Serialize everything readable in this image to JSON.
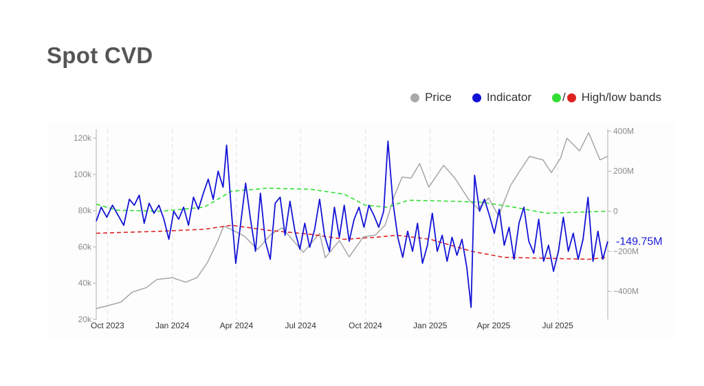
{
  "title": "Spot CVD",
  "legend": {
    "price_label": "Price",
    "indicator_label": "Indicator",
    "separator": "/",
    "bands_label": "High/low bands"
  },
  "colors": {
    "price": "#aaaaaa",
    "indicator": "#1212d6",
    "high_band": "#33dd33",
    "low_band": "#dd2222",
    "grid": "#dddddd",
    "axis": "#b0b0b0"
  },
  "chart_data": {
    "type": "line",
    "last_value_label": "-149.75M",
    "x_ticks": [
      "Oct 2023",
      "Jan 2024",
      "Apr 2024",
      "Jul 2024",
      "Oct 2024",
      "Jan 2025",
      "Apr 2025",
      "Jul 2025"
    ],
    "x_range": [
      "2023-09-15",
      "2025-09-10"
    ],
    "y_left": {
      "label": "Price",
      "range": [
        20000,
        125000
      ],
      "ticks": [
        20000,
        40000,
        60000,
        80000,
        100000,
        120000
      ],
      "tick_labels": [
        "20k",
        "40k",
        "60k",
        "80k",
        "100k",
        "120k"
      ]
    },
    "y_right": {
      "label": "Indicator",
      "range": [
        -540,
        410
      ],
      "ticks": [
        -400,
        -200,
        0,
        200,
        400
      ],
      "tick_labels": [
        "−400M",
        "−200M",
        "0",
        "200M",
        "400M"
      ]
    },
    "grid": "vertical dashed",
    "series": [
      {
        "name": "Price",
        "axis": "left",
        "points": [
          [
            "2023-09-15",
            26000
          ],
          [
            "2023-10-01",
            27500
          ],
          [
            "2023-10-20",
            29500
          ],
          [
            "2023-11-05",
            35000
          ],
          [
            "2023-11-25",
            37500
          ],
          [
            "2023-12-10",
            42000
          ],
          [
            "2024-01-01",
            43000
          ],
          [
            "2024-01-20",
            40500
          ],
          [
            "2024-02-05",
            43000
          ],
          [
            "2024-02-20",
            51500
          ],
          [
            "2024-03-05",
            63000
          ],
          [
            "2024-03-14",
            71500
          ],
          [
            "2024-03-25",
            69500
          ],
          [
            "2024-04-12",
            66000
          ],
          [
            "2024-05-01",
            58500
          ],
          [
            "2024-05-20",
            67000
          ],
          [
            "2024-06-05",
            70500
          ],
          [
            "2024-06-25",
            61500
          ],
          [
            "2024-07-05",
            57000
          ],
          [
            "2024-07-28",
            67500
          ],
          [
            "2024-08-05",
            54000
          ],
          [
            "2024-08-25",
            63500
          ],
          [
            "2024-09-08",
            54500
          ],
          [
            "2024-09-28",
            65500
          ],
          [
            "2024-10-15",
            66500
          ],
          [
            "2024-10-29",
            72000
          ],
          [
            "2024-11-11",
            88000
          ],
          [
            "2024-11-22",
            98500
          ],
          [
            "2024-12-05",
            98000
          ],
          [
            "2024-12-17",
            106000
          ],
          [
            "2024-12-30",
            93000
          ],
          [
            "2025-01-20",
            105000
          ],
          [
            "2025-02-05",
            98000
          ],
          [
            "2025-02-25",
            86000
          ],
          [
            "2025-03-10",
            81000
          ],
          [
            "2025-03-25",
            87000
          ],
          [
            "2025-04-08",
            77000
          ],
          [
            "2025-04-25",
            94000
          ],
          [
            "2025-05-10",
            103000
          ],
          [
            "2025-05-22",
            110000
          ],
          [
            "2025-06-10",
            108000
          ],
          [
            "2025-06-22",
            101000
          ],
          [
            "2025-07-05",
            109000
          ],
          [
            "2025-07-14",
            120000
          ],
          [
            "2025-08-01",
            113000
          ],
          [
            "2025-08-14",
            123000
          ],
          [
            "2025-08-30",
            108000
          ],
          [
            "2025-09-10",
            110000
          ]
        ]
      },
      {
        "name": "Indicator",
        "axis": "right",
        "points": [
          [
            "2023-09-15",
            -50
          ],
          [
            "2023-09-22",
            20
          ],
          [
            "2023-09-30",
            -30
          ],
          [
            "2023-10-08",
            30
          ],
          [
            "2023-10-16",
            -20
          ],
          [
            "2023-10-24",
            -70
          ],
          [
            "2023-11-01",
            60
          ],
          [
            "2023-11-08",
            30
          ],
          [
            "2023-11-15",
            80
          ],
          [
            "2023-11-22",
            -60
          ],
          [
            "2023-11-29",
            40
          ],
          [
            "2023-12-06",
            -10
          ],
          [
            "2023-12-13",
            30
          ],
          [
            "2023-12-20",
            -40
          ],
          [
            "2023-12-27",
            -140
          ],
          [
            "2024-01-03",
            0
          ],
          [
            "2024-01-10",
            -40
          ],
          [
            "2024-01-17",
            20
          ],
          [
            "2024-01-24",
            -70
          ],
          [
            "2024-01-31",
            70
          ],
          [
            "2024-02-07",
            10
          ],
          [
            "2024-02-14",
            90
          ],
          [
            "2024-02-21",
            160
          ],
          [
            "2024-02-28",
            60
          ],
          [
            "2024-03-06",
            200
          ],
          [
            "2024-03-13",
            120
          ],
          [
            "2024-03-18",
            330
          ],
          [
            "2024-03-25",
            -10
          ],
          [
            "2024-03-31",
            -260
          ],
          [
            "2024-04-07",
            -60
          ],
          [
            "2024-04-14",
            140
          ],
          [
            "2024-04-21",
            -40
          ],
          [
            "2024-04-28",
            -200
          ],
          [
            "2024-05-05",
            90
          ],
          [
            "2024-05-12",
            -150
          ],
          [
            "2024-05-19",
            -240
          ],
          [
            "2024-05-26",
            40
          ],
          [
            "2024-06-02",
            70
          ],
          [
            "2024-06-09",
            -120
          ],
          [
            "2024-06-16",
            50
          ],
          [
            "2024-06-23",
            -100
          ],
          [
            "2024-06-30",
            -190
          ],
          [
            "2024-07-07",
            -60
          ],
          [
            "2024-07-14",
            -180
          ],
          [
            "2024-07-21",
            -90
          ],
          [
            "2024-07-28",
            60
          ],
          [
            "2024-08-04",
            -120
          ],
          [
            "2024-08-11",
            -200
          ],
          [
            "2024-08-18",
            20
          ],
          [
            "2024-08-25",
            -130
          ],
          [
            "2024-09-01",
            30
          ],
          [
            "2024-09-08",
            -150
          ],
          [
            "2024-09-15",
            -40
          ],
          [
            "2024-09-22",
            20
          ],
          [
            "2024-09-29",
            -80
          ],
          [
            "2024-10-06",
            30
          ],
          [
            "2024-10-13",
            -20
          ],
          [
            "2024-10-20",
            -80
          ],
          [
            "2024-10-27",
            0
          ],
          [
            "2024-11-02",
            350
          ],
          [
            "2024-11-09",
            50
          ],
          [
            "2024-11-16",
            -130
          ],
          [
            "2024-11-23",
            -230
          ],
          [
            "2024-11-30",
            -100
          ],
          [
            "2024-12-07",
            -200
          ],
          [
            "2024-12-14",
            -60
          ],
          [
            "2024-12-21",
            -260
          ],
          [
            "2024-12-28",
            -170
          ],
          [
            "2025-01-04",
            -10
          ],
          [
            "2025-01-11",
            -200
          ],
          [
            "2025-01-18",
            -120
          ],
          [
            "2025-01-25",
            -250
          ],
          [
            "2025-02-01",
            -130
          ],
          [
            "2025-02-08",
            -220
          ],
          [
            "2025-02-15",
            -140
          ],
          [
            "2025-02-22",
            -280
          ],
          [
            "2025-02-28",
            -480
          ],
          [
            "2025-03-05",
            180
          ],
          [
            "2025-03-12",
            0
          ],
          [
            "2025-03-19",
            60
          ],
          [
            "2025-03-26",
            -20
          ],
          [
            "2025-04-02",
            -110
          ],
          [
            "2025-04-09",
            10
          ],
          [
            "2025-04-16",
            -170
          ],
          [
            "2025-04-23",
            -80
          ],
          [
            "2025-04-30",
            -240
          ],
          [
            "2025-05-07",
            -60
          ],
          [
            "2025-05-14",
            20
          ],
          [
            "2025-05-21",
            -150
          ],
          [
            "2025-05-28",
            -210
          ],
          [
            "2025-06-04",
            -40
          ],
          [
            "2025-06-11",
            -250
          ],
          [
            "2025-06-18",
            -170
          ],
          [
            "2025-06-25",
            -300
          ],
          [
            "2025-07-02",
            -200
          ],
          [
            "2025-07-09",
            -30
          ],
          [
            "2025-07-16",
            -200
          ],
          [
            "2025-07-23",
            -110
          ],
          [
            "2025-07-30",
            -240
          ],
          [
            "2025-08-06",
            -140
          ],
          [
            "2025-08-13",
            70
          ],
          [
            "2025-08-20",
            -250
          ],
          [
            "2025-08-27",
            -100
          ],
          [
            "2025-09-03",
            -240
          ],
          [
            "2025-09-10",
            -150
          ]
        ]
      },
      {
        "name": "High band",
        "axis": "right",
        "dashed": true,
        "points": [
          [
            "2023-09-15",
            35
          ],
          [
            "2023-10-15",
            5
          ],
          [
            "2023-12-15",
            0
          ],
          [
            "2024-02-15",
            20
          ],
          [
            "2024-03-25",
            100
          ],
          [
            "2024-05-15",
            115
          ],
          [
            "2024-07-15",
            110
          ],
          [
            "2024-09-01",
            85
          ],
          [
            "2024-10-01",
            30
          ],
          [
            "2024-11-01",
            20
          ],
          [
            "2024-12-01",
            55
          ],
          [
            "2025-02-01",
            50
          ],
          [
            "2025-03-15",
            45
          ],
          [
            "2025-04-30",
            20
          ],
          [
            "2025-06-15",
            -10
          ],
          [
            "2025-09-10",
            0
          ]
        ]
      },
      {
        "name": "Low band",
        "axis": "right",
        "dashed": true,
        "points": [
          [
            "2023-09-15",
            -110
          ],
          [
            "2023-12-15",
            -100
          ],
          [
            "2024-02-15",
            -90
          ],
          [
            "2024-03-25",
            -70
          ],
          [
            "2024-05-15",
            -95
          ],
          [
            "2024-07-15",
            -115
          ],
          [
            "2024-09-01",
            -140
          ],
          [
            "2024-10-15",
            -130
          ],
          [
            "2024-11-15",
            -120
          ],
          [
            "2025-01-01",
            -140
          ],
          [
            "2025-03-01",
            -200
          ],
          [
            "2025-04-15",
            -230
          ],
          [
            "2025-06-15",
            -235
          ],
          [
            "2025-08-15",
            -240
          ],
          [
            "2025-09-10",
            -230
          ]
        ]
      }
    ]
  }
}
